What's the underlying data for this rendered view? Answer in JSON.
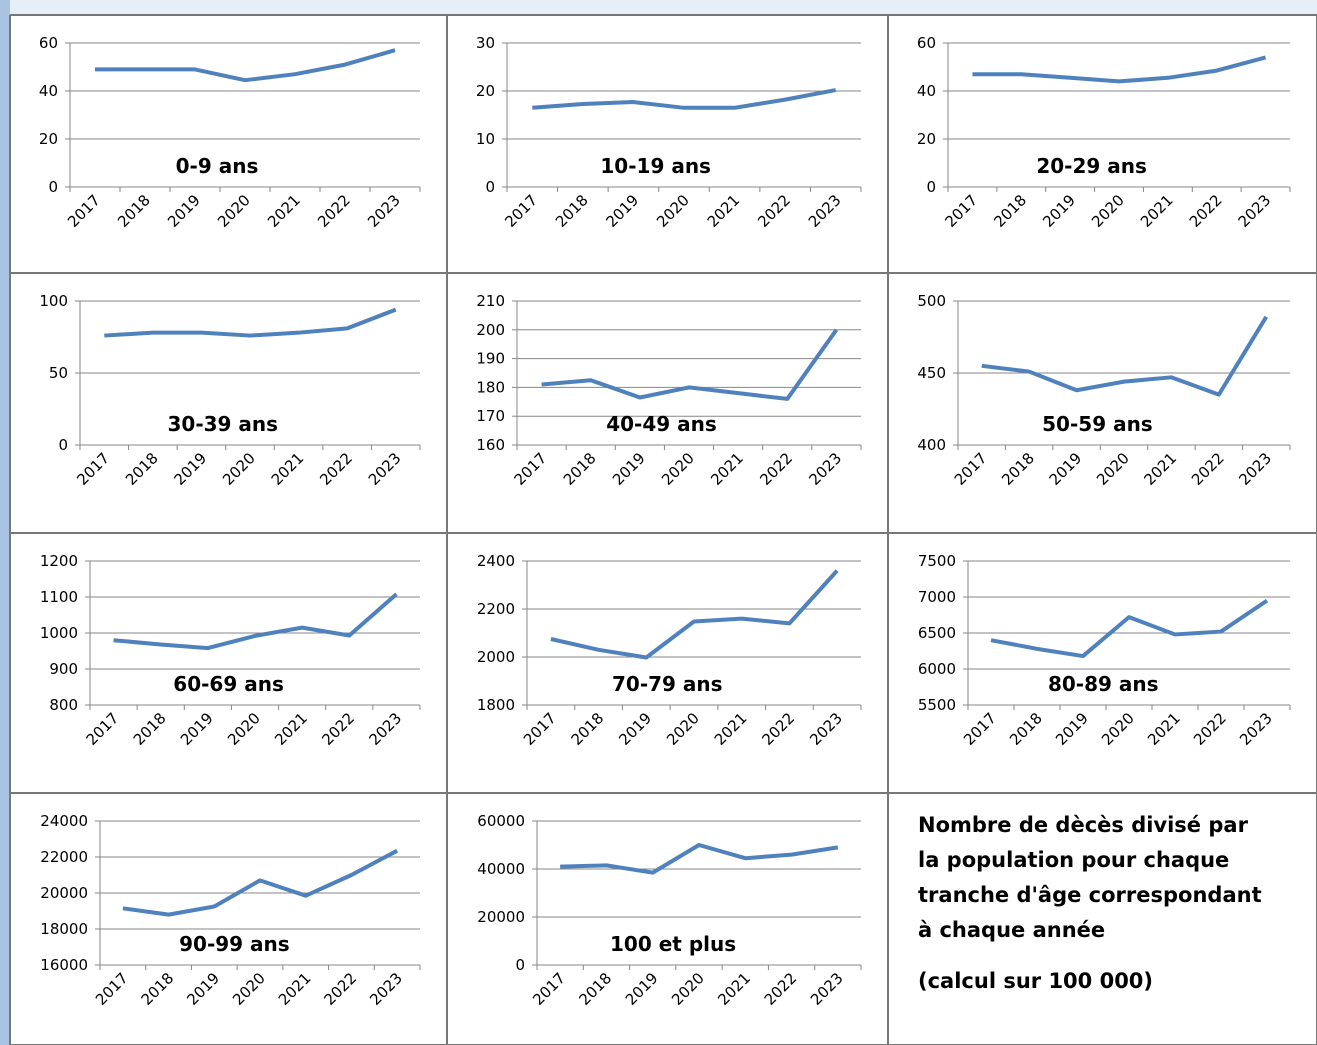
{
  "chart_data": [
    {
      "type": "line",
      "title": "0-9 ans",
      "categories": [
        "2017",
        "2018",
        "2019",
        "2020",
        "2021",
        "2022",
        "2023"
      ],
      "values": [
        49,
        49,
        49,
        44.5,
        47,
        51,
        57
      ],
      "color": "#4f81bd",
      "ylim": [
        0,
        60
      ],
      "yticks": [
        0,
        20,
        40,
        60
      ],
      "grid": true
    },
    {
      "type": "line",
      "title": "10-19 ans",
      "categories": [
        "2017",
        "2018",
        "2019",
        "2020",
        "2021",
        "2022",
        "2023"
      ],
      "values": [
        16.5,
        17.3,
        17.7,
        16.5,
        16.5,
        18.2,
        20.2
      ],
      "color": "#4f81bd",
      "ylim": [
        0,
        30
      ],
      "yticks": [
        0,
        10,
        20,
        30
      ],
      "grid": true
    },
    {
      "type": "line",
      "title": "20-29 ans",
      "categories": [
        "2017",
        "2018",
        "2019",
        "2020",
        "2021",
        "2022",
        "2023"
      ],
      "values": [
        47,
        47,
        45.5,
        44,
        45.5,
        48.5,
        54
      ],
      "color": "#4f81bd",
      "ylim": [
        0,
        60
      ],
      "yticks": [
        0,
        20,
        40,
        60
      ],
      "grid": true
    },
    {
      "type": "line",
      "title": "30-39 ans",
      "categories": [
        "2017",
        "2018",
        "2019",
        "2020",
        "2021",
        "2022",
        "2023"
      ],
      "values": [
        76,
        78,
        78,
        76,
        78,
        81,
        94
      ],
      "color": "#4f81bd",
      "ylim": [
        0,
        100
      ],
      "yticks": [
        0,
        50,
        100
      ],
      "grid": true
    },
    {
      "type": "line",
      "title": "40-49 ans",
      "categories": [
        "2017",
        "2018",
        "2019",
        "2020",
        "2021",
        "2022",
        "2023"
      ],
      "values": [
        181,
        182.5,
        176.5,
        180,
        178,
        176,
        200
      ],
      "color": "#4f81bd",
      "ylim": [
        160,
        210
      ],
      "yticks": [
        160,
        170,
        180,
        190,
        200,
        210
      ],
      "grid": true
    },
    {
      "type": "line",
      "title": "50-59 ans",
      "categories": [
        "2017",
        "2018",
        "2019",
        "2020",
        "2021",
        "2022",
        "2023"
      ],
      "values": [
        455,
        451,
        438,
        444,
        447,
        435,
        489
      ],
      "color": "#4f81bd",
      "ylim": [
        400,
        500
      ],
      "yticks": [
        400,
        450,
        500
      ],
      "grid": true
    },
    {
      "type": "line",
      "title": "60-69 ans",
      "categories": [
        "2017",
        "2018",
        "2019",
        "2020",
        "2021",
        "2022",
        "2023"
      ],
      "values": [
        980,
        968,
        958,
        992,
        1015,
        993,
        1108
      ],
      "color": "#4f81bd",
      "ylim": [
        800,
        1200
      ],
      "yticks": [
        800,
        900,
        1000,
        1100,
        1200
      ],
      "grid": true
    },
    {
      "type": "line",
      "title": "70-79 ans",
      "categories": [
        "2017",
        "2018",
        "2019",
        "2020",
        "2021",
        "2022",
        "2023"
      ],
      "values": [
        2075,
        2030,
        1998,
        2148,
        2160,
        2140,
        2360
      ],
      "color": "#4f81bd",
      "ylim": [
        1800,
        2400
      ],
      "yticks": [
        1800,
        2000,
        2200,
        2400
      ],
      "grid": true
    },
    {
      "type": "line",
      "title": "80-89 ans",
      "categories": [
        "2017",
        "2018",
        "2019",
        "2020",
        "2021",
        "2022",
        "2023"
      ],
      "values": [
        6400,
        6280,
        6180,
        6720,
        6480,
        6520,
        6950
      ],
      "color": "#4f81bd",
      "ylim": [
        5500,
        7500
      ],
      "yticks": [
        5500,
        6000,
        6500,
        7000,
        7500
      ],
      "grid": true
    },
    {
      "type": "line",
      "title": "90-99 ans",
      "categories": [
        "2017",
        "2018",
        "2019",
        "2020",
        "2021",
        "2022",
        "2023"
      ],
      "values": [
        19150,
        18800,
        19250,
        20700,
        19850,
        21000,
        22350
      ],
      "color": "#4f81bd",
      "ylim": [
        16000,
        24000
      ],
      "yticks": [
        16000,
        18000,
        20000,
        22000,
        24000
      ],
      "grid": true
    },
    {
      "type": "line",
      "title": "100 et plus",
      "categories": [
        "2017",
        "2018",
        "2019",
        "2020",
        "2021",
        "2022",
        "2023"
      ],
      "values": [
        41000,
        41500,
        38500,
        50000,
        44500,
        46000,
        49000
      ],
      "color": "#4f81bd",
      "ylim": [
        0,
        60000
      ],
      "yticks": [
        0,
        20000,
        40000,
        60000
      ],
      "grid": true
    }
  ],
  "note": {
    "lines": [
      "Nombre de dècès divisé par",
      "la population pour chaque",
      "tranche d'âge correspondant",
      "à chaque année"
    ],
    "calc": "(calcul sur  100 000)"
  }
}
